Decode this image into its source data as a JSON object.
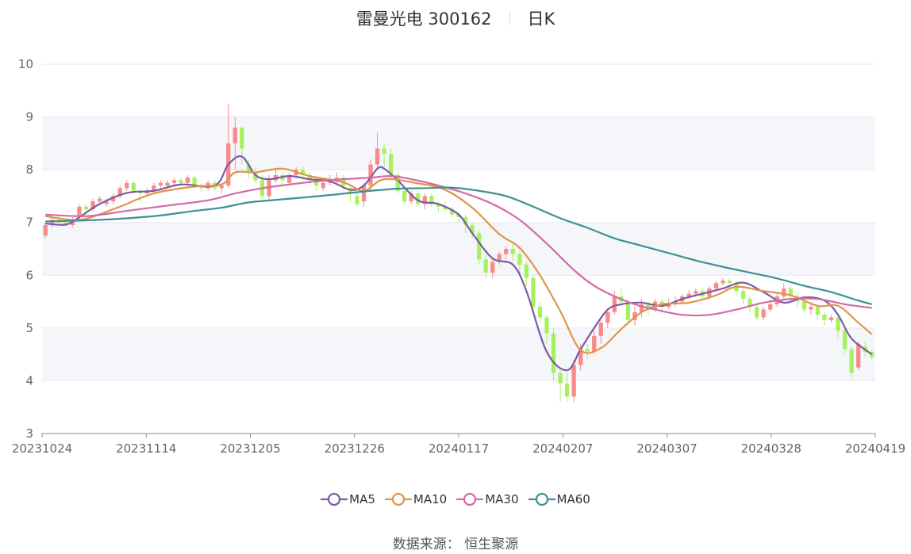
{
  "header": {
    "name": "雷曼光电 300162",
    "period": "日K"
  },
  "source": {
    "label": "数据来源：",
    "value": "恒生聚源"
  },
  "colors": {
    "up": "#fa8a8a",
    "down": "#a6f25e",
    "grid": "#e6e8f0",
    "band": "#f5f6fa",
    "axis": "#888888"
  },
  "chart_data": {
    "type": "candlestick",
    "ylim": [
      3,
      10
    ],
    "yticks": [
      3,
      4,
      5,
      6,
      7,
      8,
      9,
      10
    ],
    "xtick_labels": [
      "20231024",
      "20231114",
      "20231205",
      "20231226",
      "20240117",
      "20240207",
      "20240307",
      "20240328",
      "20240419"
    ],
    "legend_position": "bottom",
    "candles": [
      [
        6.75,
        6.95,
        7.0,
        6.7
      ],
      [
        6.95,
        7.05,
        7.1,
        6.9
      ],
      [
        7.05,
        7.0,
        7.1,
        6.95
      ],
      [
        7.0,
        6.95,
        7.05,
        6.92
      ],
      [
        6.95,
        7.05,
        7.1,
        6.9
      ],
      [
        7.1,
        7.3,
        7.35,
        7.05
      ],
      [
        7.3,
        7.25,
        7.35,
        7.15
      ],
      [
        7.25,
        7.4,
        7.45,
        7.2
      ],
      [
        7.4,
        7.45,
        7.5,
        7.35
      ],
      [
        7.35,
        7.4,
        7.45,
        7.3
      ],
      [
        7.4,
        7.5,
        7.55,
        7.35
      ],
      [
        7.5,
        7.65,
        7.7,
        7.45
      ],
      [
        7.65,
        7.75,
        7.8,
        7.6
      ],
      [
        7.75,
        7.6,
        7.8,
        7.55
      ],
      [
        7.6,
        7.55,
        7.65,
        7.4
      ],
      [
        7.55,
        7.6,
        7.65,
        7.5
      ],
      [
        7.6,
        7.7,
        7.75,
        7.55
      ],
      [
        7.7,
        7.75,
        7.8,
        7.62
      ],
      [
        7.7,
        7.75,
        7.8,
        7.65
      ],
      [
        7.75,
        7.8,
        7.85,
        7.7
      ],
      [
        7.8,
        7.75,
        7.85,
        7.7
      ],
      [
        7.75,
        7.85,
        7.9,
        7.7
      ],
      [
        7.85,
        7.7,
        7.9,
        7.65
      ],
      [
        7.7,
        7.65,
        7.75,
        7.58
      ],
      [
        7.65,
        7.75,
        7.8,
        7.6
      ],
      [
        7.75,
        7.65,
        7.8,
        7.6
      ],
      [
        7.65,
        7.7,
        7.75,
        7.55
      ],
      [
        7.7,
        8.5,
        9.25,
        7.65
      ],
      [
        8.5,
        8.8,
        9.0,
        8.0
      ],
      [
        8.8,
        8.4,
        8.5,
        8.1
      ],
      [
        8.1,
        7.95,
        8.2,
        7.85
      ],
      [
        7.95,
        7.8,
        8.05,
        7.75
      ],
      [
        7.8,
        7.5,
        7.9,
        7.45
      ],
      [
        7.5,
        7.8,
        7.9,
        7.4
      ],
      [
        7.8,
        7.9,
        8.0,
        7.75
      ],
      [
        7.9,
        7.8,
        7.95,
        7.7
      ],
      [
        7.75,
        7.9,
        7.95,
        7.7
      ],
      [
        7.9,
        8.0,
        8.05,
        7.85
      ],
      [
        8.0,
        7.9,
        8.05,
        7.8
      ],
      [
        7.9,
        7.8,
        7.95,
        7.7
      ],
      [
        7.8,
        7.7,
        7.85,
        7.6
      ],
      [
        7.65,
        7.75,
        7.85,
        7.6
      ],
      [
        7.75,
        7.8,
        7.9,
        7.7
      ],
      [
        7.8,
        7.85,
        7.95,
        7.75
      ],
      [
        7.85,
        7.7,
        7.9,
        7.6
      ],
      [
        7.65,
        7.55,
        7.7,
        7.4
      ],
      [
        7.5,
        7.35,
        7.55,
        7.3
      ],
      [
        7.4,
        7.7,
        7.75,
        7.3
      ],
      [
        7.7,
        8.1,
        8.2,
        7.6
      ],
      [
        8.1,
        8.4,
        8.7,
        8.0
      ],
      [
        8.4,
        8.3,
        8.5,
        8.0
      ],
      [
        8.3,
        7.9,
        8.4,
        7.85
      ],
      [
        7.9,
        7.6,
        7.95,
        7.55
      ],
      [
        7.6,
        7.4,
        7.65,
        7.35
      ],
      [
        7.4,
        7.55,
        7.6,
        7.35
      ],
      [
        7.55,
        7.35,
        7.6,
        7.3
      ],
      [
        7.35,
        7.5,
        7.55,
        7.25
      ],
      [
        7.5,
        7.35,
        7.55,
        7.3
      ],
      [
        7.35,
        7.3,
        7.4,
        7.2
      ],
      [
        7.3,
        7.25,
        7.4,
        7.2
      ],
      [
        7.25,
        7.15,
        7.3,
        7.1
      ],
      [
        7.15,
        7.1,
        7.2,
        7.0
      ],
      [
        7.1,
        6.95,
        7.15,
        6.8
      ],
      [
        6.95,
        6.8,
        7.0,
        6.7
      ],
      [
        6.8,
        6.3,
        6.85,
        6.2
      ],
      [
        6.3,
        6.05,
        6.4,
        5.95
      ],
      [
        6.05,
        6.25,
        6.3,
        5.95
      ],
      [
        6.25,
        6.4,
        6.45,
        6.2
      ],
      [
        6.4,
        6.5,
        6.55,
        6.3
      ],
      [
        6.5,
        6.4,
        6.6,
        6.25
      ],
      [
        6.4,
        6.2,
        6.45,
        6.0
      ],
      [
        6.2,
        5.95,
        6.25,
        5.8
      ],
      [
        5.95,
        5.4,
        6.0,
        5.3
      ],
      [
        5.4,
        5.2,
        5.5,
        5.1
      ],
      [
        5.2,
        4.9,
        5.25,
        4.7
      ],
      [
        4.9,
        4.15,
        5.0,
        4.0
      ],
      [
        4.15,
        3.95,
        4.2,
        3.6
      ],
      [
        3.95,
        3.7,
        4.15,
        3.6
      ],
      [
        3.7,
        4.3,
        4.4,
        3.6
      ],
      [
        4.3,
        4.6,
        4.7,
        4.2
      ],
      [
        4.6,
        4.55,
        4.7,
        4.4
      ],
      [
        4.55,
        4.85,
        4.95,
        4.5
      ],
      [
        4.85,
        5.1,
        5.15,
        4.7
      ],
      [
        5.1,
        5.3,
        5.35,
        5.0
      ],
      [
        5.3,
        5.6,
        5.7,
        5.25
      ],
      [
        5.6,
        5.5,
        5.75,
        5.4
      ],
      [
        5.5,
        5.15,
        5.55,
        5.05
      ],
      [
        5.15,
        5.3,
        5.4,
        5.05
      ],
      [
        5.3,
        5.45,
        5.55,
        5.2
      ],
      [
        5.45,
        5.35,
        5.5,
        5.25
      ],
      [
        5.35,
        5.5,
        5.55,
        5.3
      ],
      [
        5.5,
        5.4,
        5.55,
        5.3
      ],
      [
        5.4,
        5.45,
        5.55,
        5.35
      ],
      [
        5.45,
        5.5,
        5.6,
        5.4
      ],
      [
        5.5,
        5.6,
        5.65,
        5.45
      ],
      [
        5.6,
        5.65,
        5.72,
        5.55
      ],
      [
        5.65,
        5.7,
        5.75,
        5.6
      ],
      [
        5.7,
        5.6,
        5.75,
        5.55
      ],
      [
        5.6,
        5.75,
        5.8,
        5.55
      ],
      [
        5.75,
        5.85,
        5.9,
        5.7
      ],
      [
        5.85,
        5.9,
        5.95,
        5.8
      ],
      [
        5.9,
        5.85,
        5.95,
        5.75
      ],
      [
        5.85,
        5.7,
        5.9,
        5.6
      ],
      [
        5.7,
        5.55,
        5.75,
        5.45
      ],
      [
        5.55,
        5.4,
        5.6,
        5.3
      ],
      [
        5.4,
        5.2,
        5.45,
        5.15
      ],
      [
        5.2,
        5.35,
        5.4,
        5.15
      ],
      [
        5.35,
        5.45,
        5.55,
        5.3
      ],
      [
        5.45,
        5.6,
        5.65,
        5.4
      ],
      [
        5.6,
        5.75,
        5.85,
        5.55
      ],
      [
        5.75,
        5.6,
        5.8,
        5.5
      ],
      [
        5.6,
        5.5,
        5.65,
        5.4
      ],
      [
        5.5,
        5.35,
        5.55,
        5.3
      ],
      [
        5.35,
        5.4,
        5.45,
        5.25
      ],
      [
        5.4,
        5.25,
        5.45,
        5.15
      ],
      [
        5.25,
        5.15,
        5.3,
        5.05
      ],
      [
        5.15,
        5.2,
        5.25,
        5.1
      ],
      [
        5.2,
        4.95,
        5.25,
        4.8
      ],
      [
        4.95,
        4.6,
        5.0,
        4.5
      ],
      [
        4.6,
        4.15,
        4.65,
        4.05
      ],
      [
        4.25,
        4.7,
        4.75,
        4.2
      ],
      [
        4.65,
        4.55,
        4.75,
        4.45
      ],
      [
        4.55,
        4.45,
        4.6,
        4.4
      ]
    ],
    "series": [
      {
        "name": "MA5",
        "color": "#7b5aa6",
        "x": [
          0,
          3,
          5,
          8,
          12,
          16,
          20,
          25,
          27,
          29,
          31,
          33,
          36,
          39,
          42,
          45,
          47,
          49,
          50,
          52,
          55,
          58,
          61,
          63,
          66,
          69,
          71,
          74,
          77,
          79,
          81,
          83,
          85,
          88,
          91,
          94,
          97,
          100,
          103,
          106,
          109,
          112,
          115,
          117,
          119,
          122
        ],
        "values": [
          6.98,
          6.96,
          7.1,
          7.35,
          7.56,
          7.6,
          7.72,
          7.7,
          8.1,
          8.25,
          7.9,
          7.82,
          7.88,
          7.82,
          7.78,
          7.62,
          7.7,
          8.02,
          8.02,
          7.8,
          7.42,
          7.35,
          7.15,
          6.8,
          6.32,
          6.2,
          5.7,
          4.55,
          4.2,
          4.6,
          5.0,
          5.35,
          5.45,
          5.48,
          5.42,
          5.55,
          5.65,
          5.75,
          5.86,
          5.68,
          5.48,
          5.58,
          5.52,
          5.25,
          4.8,
          4.5
        ]
      },
      {
        "name": "MA10",
        "color": "#e0954a",
        "x": [
          0,
          5,
          10,
          16,
          22,
          26,
          28,
          31,
          35,
          39,
          44,
          47,
          50,
          55,
          59,
          63,
          67,
          70,
          73,
          76,
          79,
          82,
          85,
          88,
          91,
          95,
          99,
          102,
          106,
          110,
          114,
          117,
          120,
          122
        ],
        "values": [
          7.12,
          7.05,
          7.25,
          7.55,
          7.68,
          7.72,
          7.95,
          7.95,
          8.02,
          7.88,
          7.76,
          7.6,
          7.82,
          7.74,
          7.62,
          7.28,
          6.78,
          6.52,
          6.0,
          5.32,
          4.58,
          4.62,
          4.98,
          5.3,
          5.45,
          5.48,
          5.62,
          5.78,
          5.7,
          5.62,
          5.42,
          5.42,
          5.1,
          4.88
        ]
      },
      {
        "name": "MA30",
        "color": "#d46aa8",
        "x": [
          0,
          6,
          12,
          18,
          24,
          28,
          32,
          36,
          40,
          44,
          48,
          51,
          54,
          58,
          62,
          66,
          70,
          74,
          78,
          81,
          84,
          87,
          90,
          94,
          98,
          102,
          106,
          110,
          114,
          118,
          122
        ],
        "values": [
          7.15,
          7.12,
          7.22,
          7.32,
          7.42,
          7.55,
          7.65,
          7.72,
          7.78,
          7.82,
          7.85,
          7.88,
          7.82,
          7.7,
          7.55,
          7.35,
          7.05,
          6.6,
          6.1,
          5.8,
          5.6,
          5.45,
          5.35,
          5.25,
          5.25,
          5.35,
          5.48,
          5.55,
          5.55,
          5.45,
          5.38
        ]
      },
      {
        "name": "MA60",
        "color": "#3d9094",
        "x": [
          0,
          8,
          16,
          22,
          26,
          30,
          36,
          42,
          48,
          52,
          56,
          60,
          64,
          68,
          72,
          76,
          80,
          84,
          88,
          92,
          96,
          100,
          104,
          108,
          112,
          116,
          120,
          122
        ],
        "values": [
          7.02,
          7.05,
          7.12,
          7.22,
          7.28,
          7.38,
          7.45,
          7.52,
          7.6,
          7.64,
          7.65,
          7.66,
          7.6,
          7.5,
          7.3,
          7.08,
          6.9,
          6.7,
          6.56,
          6.42,
          6.28,
          6.16,
          6.05,
          5.94,
          5.8,
          5.68,
          5.52,
          5.45
        ]
      }
    ]
  }
}
